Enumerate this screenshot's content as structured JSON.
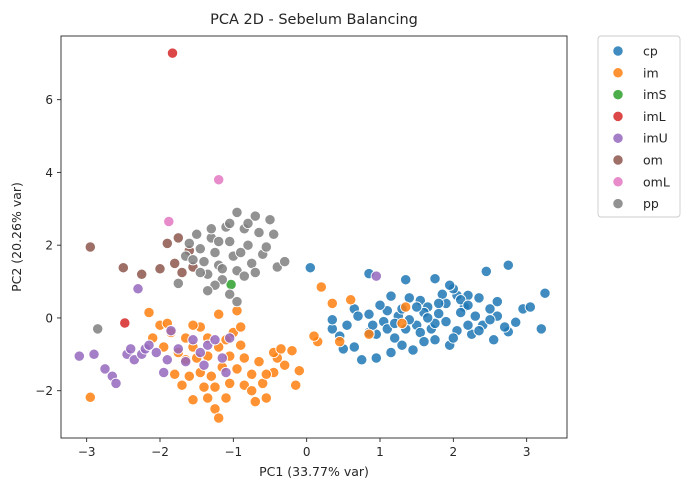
{
  "chart_data": {
    "type": "scatter",
    "title": "PCA 2D - Sebelum Balancing",
    "xlabel": "PC1 (33.77% var)",
    "ylabel": "PC2 (20.26% var)",
    "xlim": [
      -3.35,
      3.55
    ],
    "ylim": [
      -3.3,
      7.75
    ],
    "xticks": [
      -3,
      -2,
      -1,
      0,
      1,
      2,
      3
    ],
    "yticks": [
      -2,
      0,
      2,
      4,
      6
    ],
    "xtick_labels": [
      "−3",
      "−2",
      "−1",
      "0",
      "1",
      "2",
      "3"
    ],
    "ytick_labels": [
      "−2",
      "0",
      "2",
      "4",
      "6"
    ],
    "grid": false,
    "legend_position": "outside-top-right",
    "series": [
      {
        "name": "cp",
        "color": "#1f77b4",
        "points": [
          [
            0.05,
            1.38
          ],
          [
            0.85,
            1.22
          ],
          [
            1.35,
            1.05
          ],
          [
            1.75,
            1.08
          ],
          [
            2.45,
            1.28
          ],
          [
            2.75,
            1.45
          ],
          [
            3.25,
            0.68
          ],
          [
            3.2,
            -0.3
          ],
          [
            2.2,
            0.62
          ],
          [
            2.6,
            0.45
          ],
          [
            2.95,
            0.25
          ],
          [
            3.05,
            0.3
          ],
          [
            2.85,
            -0.12
          ],
          [
            2.75,
            -0.38
          ],
          [
            2.55,
            -0.6
          ],
          [
            2.25,
            -0.45
          ],
          [
            1.95,
            -0.75
          ],
          [
            1.75,
            -0.6
          ],
          [
            1.45,
            -0.88
          ],
          [
            1.5,
            -0.2
          ],
          [
            1.15,
            -0.95
          ],
          [
            1.2,
            -0.55
          ],
          [
            0.95,
            -1.1
          ],
          [
            0.75,
            -1.15
          ],
          [
            0.65,
            -0.8
          ],
          [
            0.45,
            -0.5
          ],
          [
            0.55,
            -0.2
          ],
          [
            0.35,
            -0.3
          ],
          [
            0.35,
            -0.05
          ],
          [
            0.65,
            0.25
          ],
          [
            0.85,
            0.1
          ],
          [
            1.05,
            -0.1
          ],
          [
            1.25,
            0.05
          ],
          [
            1.4,
            0.55
          ],
          [
            1.55,
            0.48
          ],
          [
            1.65,
            0.3
          ],
          [
            1.8,
            0.12
          ],
          [
            1.9,
            0.4
          ],
          [
            2.05,
            0.62
          ],
          [
            2.15,
            0.3
          ],
          [
            2.3,
            0.05
          ],
          [
            2.4,
            -0.2
          ],
          [
            2.5,
            0.25
          ],
          [
            2.05,
            -0.35
          ],
          [
            1.9,
            -0.1
          ],
          [
            1.7,
            -0.3
          ],
          [
            1.55,
            -0.4
          ],
          [
            1.35,
            -0.3
          ],
          [
            1.1,
            -0.3
          ],
          [
            0.95,
            -0.45
          ],
          [
            0.85,
            -0.4
          ],
          [
            1.85,
            0.65
          ],
          [
            2.0,
            0.8
          ],
          [
            1.6,
            0.15
          ],
          [
            1.3,
            0.25
          ],
          [
            1.1,
            0.2
          ],
          [
            2.2,
            -0.2
          ],
          [
            2.35,
            -0.35
          ],
          [
            2.6,
            0.05
          ],
          [
            2.7,
            -0.25
          ],
          [
            1.4,
            -0.05
          ],
          [
            1.0,
            0.35
          ],
          [
            1.75,
            -0.15
          ],
          [
            2.1,
            0.15
          ],
          [
            0.5,
            -0.85
          ],
          [
            1.6,
            -0.65
          ],
          [
            1.3,
            -0.75
          ],
          [
            2.0,
            -0.55
          ],
          [
            1.8,
            0.4
          ],
          [
            2.35,
            0.55
          ],
          [
            0.7,
            0.05
          ],
          [
            1.15,
            0.6
          ],
          [
            1.95,
            0.9
          ],
          [
            2.1,
            0.5
          ],
          [
            1.5,
            0.3
          ],
          [
            0.9,
            -0.2
          ],
          [
            1.2,
            -0.15
          ],
          [
            1.65,
            0.0
          ],
          [
            2.2,
            0.35
          ],
          [
            2.5,
            -0.05
          ]
        ]
      },
      {
        "name": "im",
        "color": "#ff7f0e",
        "points": [
          [
            -2.95,
            -2.18
          ],
          [
            -2.15,
            0.15
          ],
          [
            -2.0,
            -0.2
          ],
          [
            -1.95,
            -0.8
          ],
          [
            -2.1,
            -0.55
          ],
          [
            -1.85,
            -0.4
          ],
          [
            -1.65,
            -0.55
          ],
          [
            -1.55,
            -0.8
          ],
          [
            -1.5,
            -1.1
          ],
          [
            -1.45,
            -1.5
          ],
          [
            -1.8,
            -1.55
          ],
          [
            -1.7,
            -1.85
          ],
          [
            -1.55,
            -2.25
          ],
          [
            -1.35,
            -2.2
          ],
          [
            -1.25,
            -2.5
          ],
          [
            -1.2,
            -2.75
          ],
          [
            -1.1,
            -2.2
          ],
          [
            -1.3,
            -1.6
          ],
          [
            -1.15,
            -1.35
          ],
          [
            -1.05,
            -1.05
          ],
          [
            -1.2,
            -0.8
          ],
          [
            -1.35,
            -0.55
          ],
          [
            -1.45,
            -0.25
          ],
          [
            -1.0,
            -0.4
          ],
          [
            -0.9,
            -0.75
          ],
          [
            -0.85,
            -1.1
          ],
          [
            -0.95,
            -1.4
          ],
          [
            -0.85,
            -1.85
          ],
          [
            -0.75,
            -2.0
          ],
          [
            -0.7,
            -2.3
          ],
          [
            -0.55,
            -2.2
          ],
          [
            -0.6,
            -1.8
          ],
          [
            -0.45,
            -1.5
          ],
          [
            -0.3,
            -1.3
          ],
          [
            -0.4,
            -1.1
          ],
          [
            -0.2,
            -0.9
          ],
          [
            -0.1,
            -1.45
          ],
          [
            -0.15,
            -1.85
          ],
          [
            -0.45,
            -0.95
          ],
          [
            -0.65,
            -1.2
          ],
          [
            -0.75,
            -1.55
          ],
          [
            -1.05,
            -1.8
          ],
          [
            -1.25,
            -1.9
          ],
          [
            -1.4,
            -1.9
          ],
          [
            -1.65,
            -1.15
          ],
          [
            -1.75,
            -0.95
          ],
          [
            -1.9,
            -0.15
          ],
          [
            -1.55,
            -0.2
          ],
          [
            -0.95,
            0.2
          ],
          [
            -0.9,
            -0.25
          ],
          [
            -1.2,
            0.1
          ],
          [
            0.2,
            0.85
          ],
          [
            0.15,
            -0.65
          ],
          [
            0.35,
            0.4
          ],
          [
            0.45,
            -0.65
          ],
          [
            0.6,
            0.5
          ],
          [
            0.85,
            -0.45
          ],
          [
            1.3,
            -0.15
          ],
          [
            1.35,
            0.3
          ],
          [
            0.1,
            -0.5
          ],
          [
            -0.55,
            -1.55
          ],
          [
            -1.1,
            -0.6
          ],
          [
            -1.6,
            -1.6
          ],
          [
            -1.35,
            -1.05
          ],
          [
            -0.35,
            -0.85
          ]
        ]
      },
      {
        "name": "imS",
        "color": "#2ca02c",
        "points": [
          [
            -1.03,
            0.92
          ]
        ]
      },
      {
        "name": "imL",
        "color": "#d62728",
        "points": [
          [
            -1.83,
            7.28
          ],
          [
            -2.48,
            -0.14
          ]
        ]
      },
      {
        "name": "imU",
        "color": "#9467bd",
        "points": [
          [
            -3.1,
            -1.05
          ],
          [
            -2.9,
            -1.0
          ],
          [
            -2.75,
            -1.4
          ],
          [
            -2.65,
            -1.6
          ],
          [
            -2.6,
            -1.8
          ],
          [
            -2.45,
            -1.0
          ],
          [
            -2.4,
            -0.85
          ],
          [
            -2.35,
            -1.15
          ],
          [
            -2.3,
            0.8
          ],
          [
            -2.25,
            -1.0
          ],
          [
            -2.2,
            -0.85
          ],
          [
            -2.15,
            -0.75
          ],
          [
            -2.05,
            -0.95
          ],
          [
            -1.95,
            -1.5
          ],
          [
            -1.9,
            -1.15
          ],
          [
            -1.85,
            -0.35
          ],
          [
            -1.75,
            -0.85
          ],
          [
            -1.65,
            -1.2
          ],
          [
            -1.55,
            -0.6
          ],
          [
            -1.45,
            -0.95
          ],
          [
            -1.4,
            -1.3
          ],
          [
            -1.35,
            -0.75
          ],
          [
            -1.25,
            -0.6
          ],
          [
            -1.15,
            -1.1
          ],
          [
            -1.1,
            -1.5
          ],
          [
            -1.05,
            -0.55
          ],
          [
            0.95,
            1.15
          ]
        ]
      },
      {
        "name": "om",
        "color": "#8c564b",
        "points": [
          [
            -2.95,
            1.95
          ],
          [
            -2.5,
            1.38
          ],
          [
            -2.25,
            1.2
          ],
          [
            -2.0,
            1.35
          ],
          [
            -1.9,
            2.05
          ],
          [
            -1.75,
            2.2
          ],
          [
            -1.6,
            1.85
          ],
          [
            -1.55,
            1.4
          ],
          [
            -1.7,
            1.25
          ],
          [
            -1.8,
            1.5
          ]
        ]
      },
      {
        "name": "omL",
        "color": "#e377c2",
        "points": [
          [
            -1.2,
            3.8
          ],
          [
            -1.88,
            2.65
          ]
        ]
      },
      {
        "name": "pp",
        "color": "#7f7f7f",
        "points": [
          [
            -2.85,
            -0.3
          ],
          [
            -1.75,
            0.95
          ],
          [
            -1.65,
            1.7
          ],
          [
            -1.6,
            2.05
          ],
          [
            -1.5,
            2.3
          ],
          [
            -1.45,
            1.9
          ],
          [
            -1.4,
            1.55
          ],
          [
            -1.35,
            1.2
          ],
          [
            -1.3,
            2.2
          ],
          [
            -1.25,
            1.8
          ],
          [
            -1.2,
            1.45
          ],
          [
            -1.15,
            1.05
          ],
          [
            -1.1,
            2.5
          ],
          [
            -1.05,
            2.1
          ],
          [
            -1.0,
            1.7
          ],
          [
            -0.95,
            1.3
          ],
          [
            -0.95,
            2.9
          ],
          [
            -0.85,
            2.45
          ],
          [
            -0.8,
            2.0
          ],
          [
            -0.75,
            1.5
          ],
          [
            -0.7,
            2.8
          ],
          [
            -0.65,
            2.35
          ],
          [
            -0.6,
            1.75
          ],
          [
            -0.55,
            1.95
          ],
          [
            -0.5,
            2.7
          ],
          [
            -0.45,
            2.3
          ],
          [
            -0.4,
            1.4
          ],
          [
            -0.3,
            1.55
          ],
          [
            -0.85,
            1.15
          ],
          [
            -1.05,
            0.65
          ],
          [
            -1.25,
            0.9
          ],
          [
            -1.35,
            0.75
          ],
          [
            -1.55,
            1.6
          ],
          [
            -1.45,
            1.25
          ],
          [
            -1.15,
            1.35
          ],
          [
            -0.9,
            1.8
          ],
          [
            -0.7,
            1.25
          ],
          [
            -0.95,
            0.45
          ],
          [
            -1.05,
            2.6
          ],
          [
            -1.3,
            2.45
          ],
          [
            -1.2,
            2.1
          ],
          [
            -0.8,
            2.6
          ]
        ]
      }
    ]
  }
}
